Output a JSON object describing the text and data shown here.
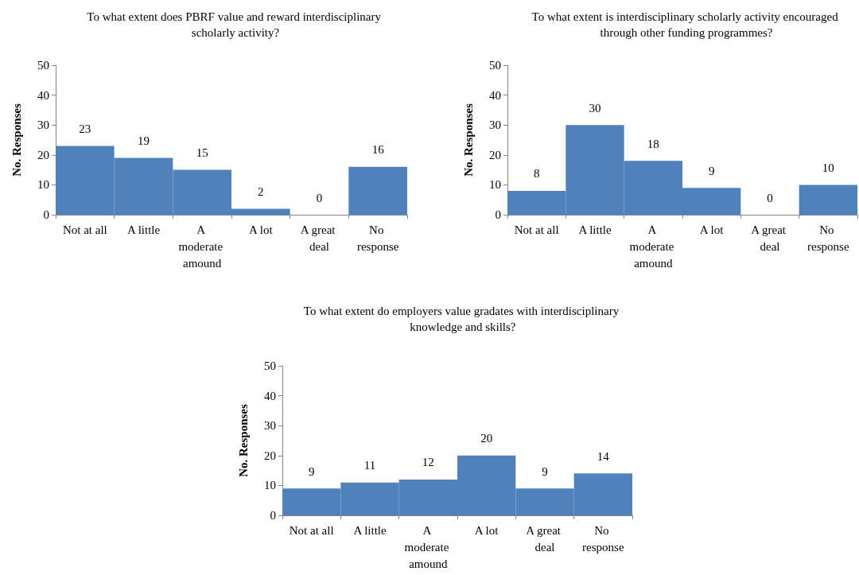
{
  "chart_data": [
    {
      "type": "bar",
      "title": "To what extent does PBRF value and reward interdisciplinary scholarly activity?",
      "ylabel": "No. Responses",
      "categories": [
        "Not at all",
        "A little",
        "A moderate amound",
        "A lot",
        "A great deal",
        "No response"
      ],
      "values": [
        23,
        19,
        15,
        2,
        0,
        16
      ],
      "color": "#4f81bd",
      "ylim": [
        0,
        50
      ],
      "yticks": [
        0,
        10,
        20,
        30,
        40,
        50
      ],
      "data_labels": true
    },
    {
      "type": "bar",
      "title": "To what extent is interdisciplinary scholarly activity encouraged through other funding programmes?",
      "ylabel": "No. Responses",
      "categories": [
        "Not at all",
        "A little",
        "A moderate amound",
        "A lot",
        "A great deal",
        "No response"
      ],
      "values": [
        8,
        30,
        18,
        9,
        0,
        10
      ],
      "color": "#4f81bd",
      "ylim": [
        0,
        50
      ],
      "yticks": [
        0,
        10,
        20,
        30,
        40,
        50
      ],
      "data_labels": true
    },
    {
      "type": "bar",
      "title": "To what extent do employers value gradates with interdisciplinary knowledge and skills?",
      "ylabel": "No. Responses",
      "categories": [
        "Not at all",
        "A little",
        "A moderate amound",
        "A lot",
        "A great deal",
        "No response"
      ],
      "values": [
        9,
        11,
        12,
        20,
        9,
        14
      ],
      "color": "#4f81bd",
      "ylim": [
        0,
        50
      ],
      "yticks": [
        0,
        10,
        20,
        30,
        40,
        50
      ],
      "data_labels": true
    }
  ]
}
